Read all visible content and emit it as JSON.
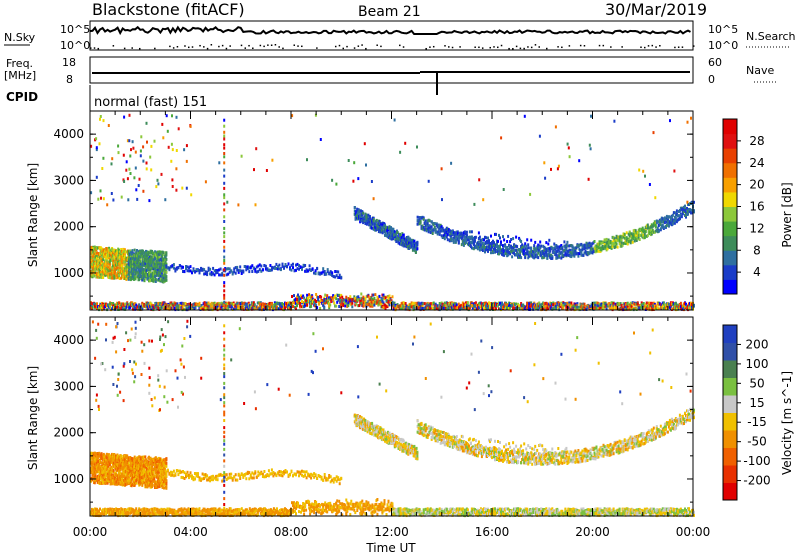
{
  "header": {
    "station": "Blackstone (fitACF)",
    "beam": "Beam 21",
    "date": "30/Mar/2019"
  },
  "noise_panel": {
    "left_label": "N.Sky",
    "right_label": "N.Search",
    "tick_top": "10^5",
    "tick_bottom": "10^0"
  },
  "freq_panel": {
    "left_label_line1": "Freq.",
    "left_label_line2": "[MHz]",
    "right_label": "Nave",
    "left_ticks": [
      "18",
      "8"
    ],
    "right_ticks": [
      "60",
      "0"
    ]
  },
  "cpid": {
    "label": "CPID",
    "value": "normal (fast) 151"
  },
  "chart_data": [
    {
      "type": "heatmap",
      "title": "",
      "xlabel": "Time UT",
      "ylabel": "Slant Range [km]",
      "x_ticks": [
        "00:00",
        "04:00",
        "08:00",
        "12:00",
        "16:00",
        "20:00",
        "00:00"
      ],
      "y_ticks": [
        1000,
        2000,
        3000,
        4000
      ],
      "ylim": [
        200,
        4500
      ],
      "colorbar": {
        "label": "Power [dB]",
        "ticks": [
          "4",
          "8",
          "12",
          "16",
          "20",
          "24",
          "28"
        ],
        "colors": [
          "#0000ff",
          "#1a3cc8",
          "#2e6fa0",
          "#3d8c5a",
          "#4aa83a",
          "#8cc83a",
          "#f0d800",
          "#f8a000",
          "#f07000",
          "#e84000",
          "#e01010",
          "#e00000"
        ]
      },
      "features": [
        {
          "name": "near-range band",
          "time_h": [
            0,
            24
          ],
          "range_km": [
            250,
            400
          ]
        },
        {
          "name": "early ionospheric echo",
          "time_h": [
            0,
            3
          ],
          "range_km": [
            950,
            1600
          ]
        },
        {
          "name": "afternoon arc",
          "time_h": [
            10.5,
            13
          ],
          "range_km": [
            1400,
            2500
          ]
        },
        {
          "name": "evening arc",
          "time_h": [
            13,
            24
          ],
          "range_km": [
            1300,
            2500
          ]
        }
      ]
    },
    {
      "type": "heatmap",
      "title": "",
      "xlabel": "Time UT",
      "ylabel": "Slant Range [km]",
      "x_ticks": [
        "00:00",
        "04:00",
        "08:00",
        "12:00",
        "16:00",
        "20:00",
        "00:00"
      ],
      "y_ticks": [
        1000,
        2000,
        3000,
        4000
      ],
      "ylim": [
        200,
        4500
      ],
      "colorbar": {
        "label": "Velocity [m s^-1]",
        "ticks": [
          "200",
          "100",
          "50",
          "15",
          "-15",
          "-50",
          "-100",
          "-200"
        ],
        "colors": [
          "#2040c0",
          "#3050a8",
          "#4a8050",
          "#7ac040",
          "#c8c8c8",
          "#f0c000",
          "#f09000",
          "#f06000",
          "#e83000",
          "#e00000"
        ]
      }
    }
  ],
  "colors": {
    "axis": "#000000",
    "background": "#ffffff"
  }
}
